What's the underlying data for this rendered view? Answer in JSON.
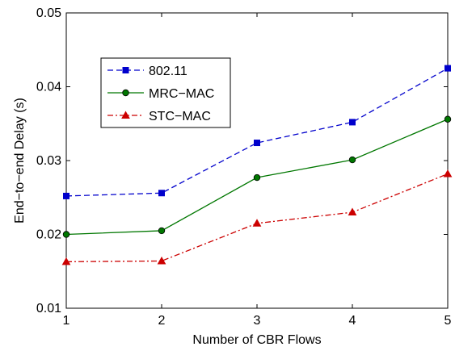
{
  "chart_data": {
    "type": "line",
    "title": "",
    "xlabel": "Number of CBR Flows",
    "ylabel": "End−to−end Delay (s)",
    "x": [
      1,
      2,
      3,
      4,
      5
    ],
    "xlim": [
      1,
      5
    ],
    "ylim": [
      0.01,
      0.05
    ],
    "xticks": [
      "1",
      "2",
      "3",
      "4",
      "5"
    ],
    "yticks": [
      "0.01",
      "0.02",
      "0.03",
      "0.04",
      "0.05"
    ],
    "grid": false,
    "legend_position": "upper-left",
    "series": [
      {
        "name": "802.11",
        "values": [
          0.0252,
          0.0256,
          0.0324,
          0.0352,
          0.0425
        ],
        "color": "#0000cc",
        "line_style": "dashed",
        "marker": "square"
      },
      {
        "name": "MRC−MAC",
        "values": [
          0.02,
          0.0205,
          0.0277,
          0.0301,
          0.0356
        ],
        "color": "#007700",
        "line_style": "solid",
        "marker": "circle"
      },
      {
        "name": "STC−MAC",
        "values": [
          0.0163,
          0.0164,
          0.0215,
          0.023,
          0.0282
        ],
        "color": "#cc0000",
        "line_style": "dash-dot",
        "marker": "triangle"
      }
    ]
  }
}
